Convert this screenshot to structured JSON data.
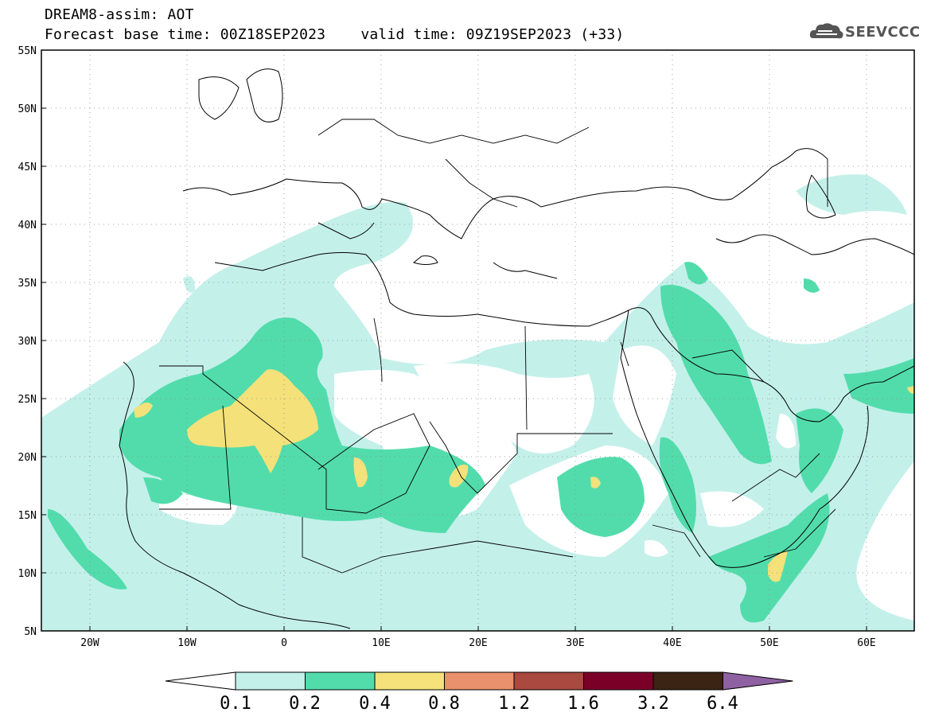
{
  "header": {
    "title": "DREAM8-assim: AOT",
    "base_time_label": "Forecast base time: 00Z18SEP2023",
    "valid_time_label": "valid time: 09Z19SEP2023 (+33)"
  },
  "logo": {
    "text": "SEEVCCC",
    "icon": "cloud-icon"
  },
  "map": {
    "projection": "cylindrical equidistant",
    "lon_range": [
      -25,
      65
    ],
    "lat_range": [
      5,
      55
    ],
    "lat_labels": [
      "55N",
      "50N",
      "45N",
      "40N",
      "35N",
      "30N",
      "25N",
      "20N",
      "15N",
      "10N",
      "5N"
    ],
    "lon_labels": [
      "20W",
      "10W",
      "0",
      "10E",
      "20E",
      "30E",
      "40E",
      "50E",
      "60E"
    ],
    "grid": "dotted"
  },
  "colorbar": {
    "labels": [
      "0.1",
      "0.2",
      "0.4",
      "0.8",
      "1.2",
      "1.6",
      "3.2",
      "6.4"
    ],
    "colors": [
      "#ffffff",
      "#c4f0ea",
      "#52dcac",
      "#f4e179",
      "#e8916c",
      "#a9493f",
      "#7b0027",
      "#3b2414",
      "#8e62a2"
    ]
  }
}
